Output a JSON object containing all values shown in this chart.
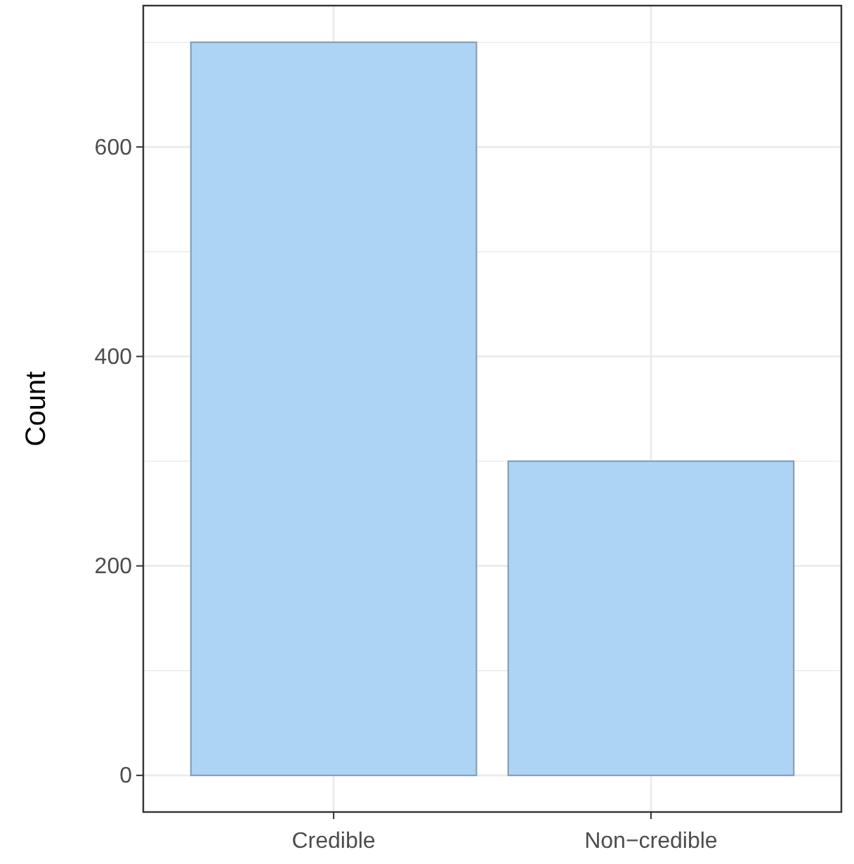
{
  "chart_data": {
    "type": "bar",
    "ylabel": "Count",
    "categories": [
      "Credible",
      "Non−credible"
    ],
    "values": [
      700,
      300
    ],
    "color": "#aed4f5",
    "ylim": [
      -35,
      735
    ],
    "yticks": [
      0,
      {
        "value": 100,
        "label": null
      },
      200,
      {
        "value": 300,
        "label": null
      },
      400,
      {
        "value": 500,
        "label": null
      },
      600,
      {
        "value": 700,
        "label": null
      }
    ],
    "grid": true
  }
}
